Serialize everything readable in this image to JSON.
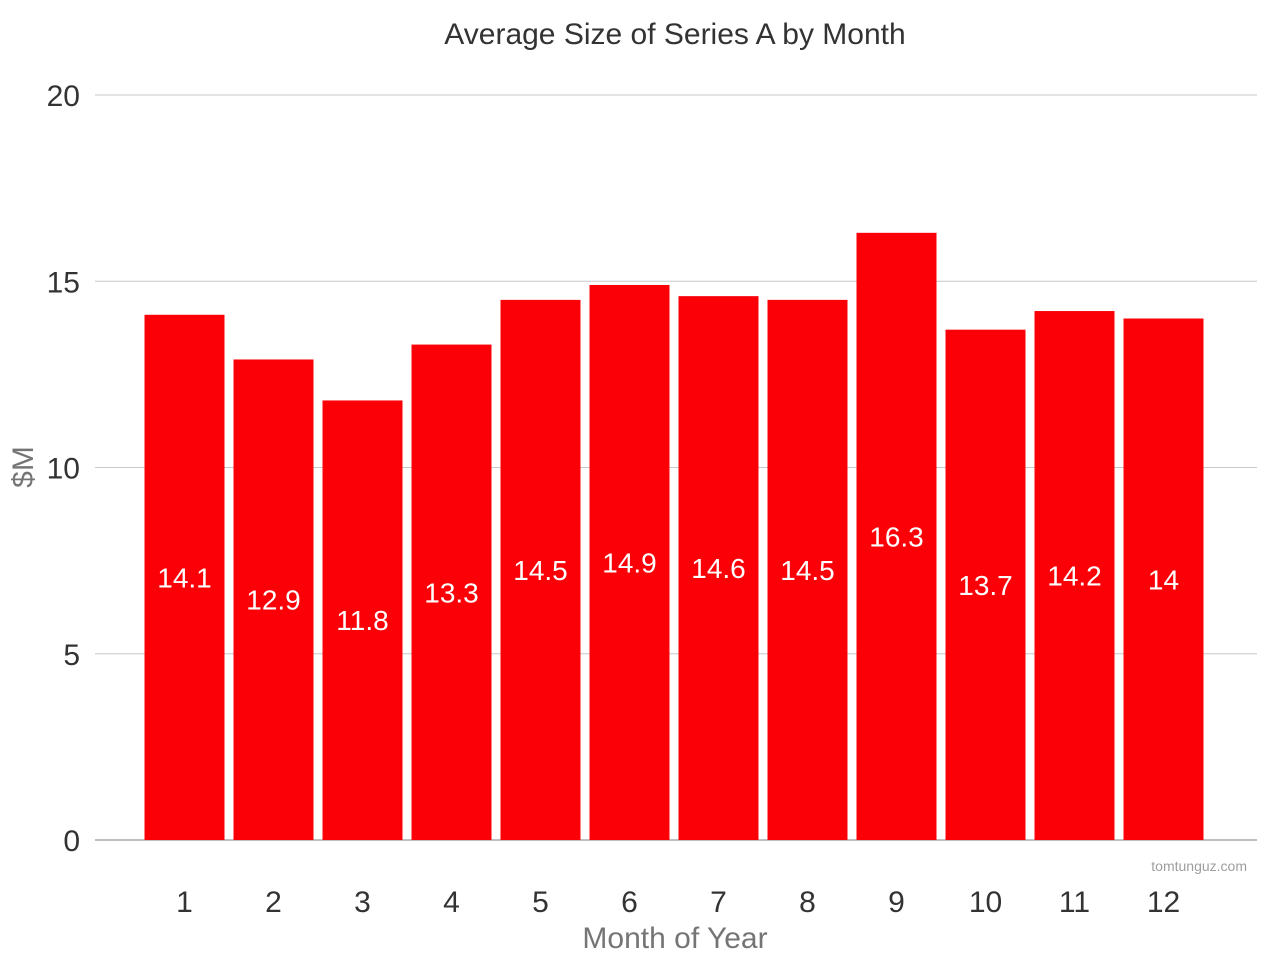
{
  "chart_data": {
    "type": "bar",
    "title": "Average Size of Series A by Month",
    "xlabel": "Month of Year",
    "ylabel": "$M",
    "categories": [
      "1",
      "2",
      "3",
      "4",
      "5",
      "6",
      "7",
      "8",
      "9",
      "10",
      "11",
      "12"
    ],
    "values": [
      14.1,
      12.9,
      11.8,
      13.3,
      14.5,
      14.9,
      14.6,
      14.5,
      16.3,
      13.7,
      14.2,
      14
    ],
    "data_labels": [
      "14.1",
      "12.9",
      "11.8",
      "13.3",
      "14.5",
      "14.9",
      "14.6",
      "14.5",
      "16.3",
      "13.7",
      "14.2",
      "14"
    ],
    "ylim": [
      0,
      20
    ],
    "yticks": [
      0,
      5,
      10,
      15,
      20
    ],
    "grid": true,
    "bar_color": "#fb0007"
  },
  "watermark": "tomtunguz.com"
}
